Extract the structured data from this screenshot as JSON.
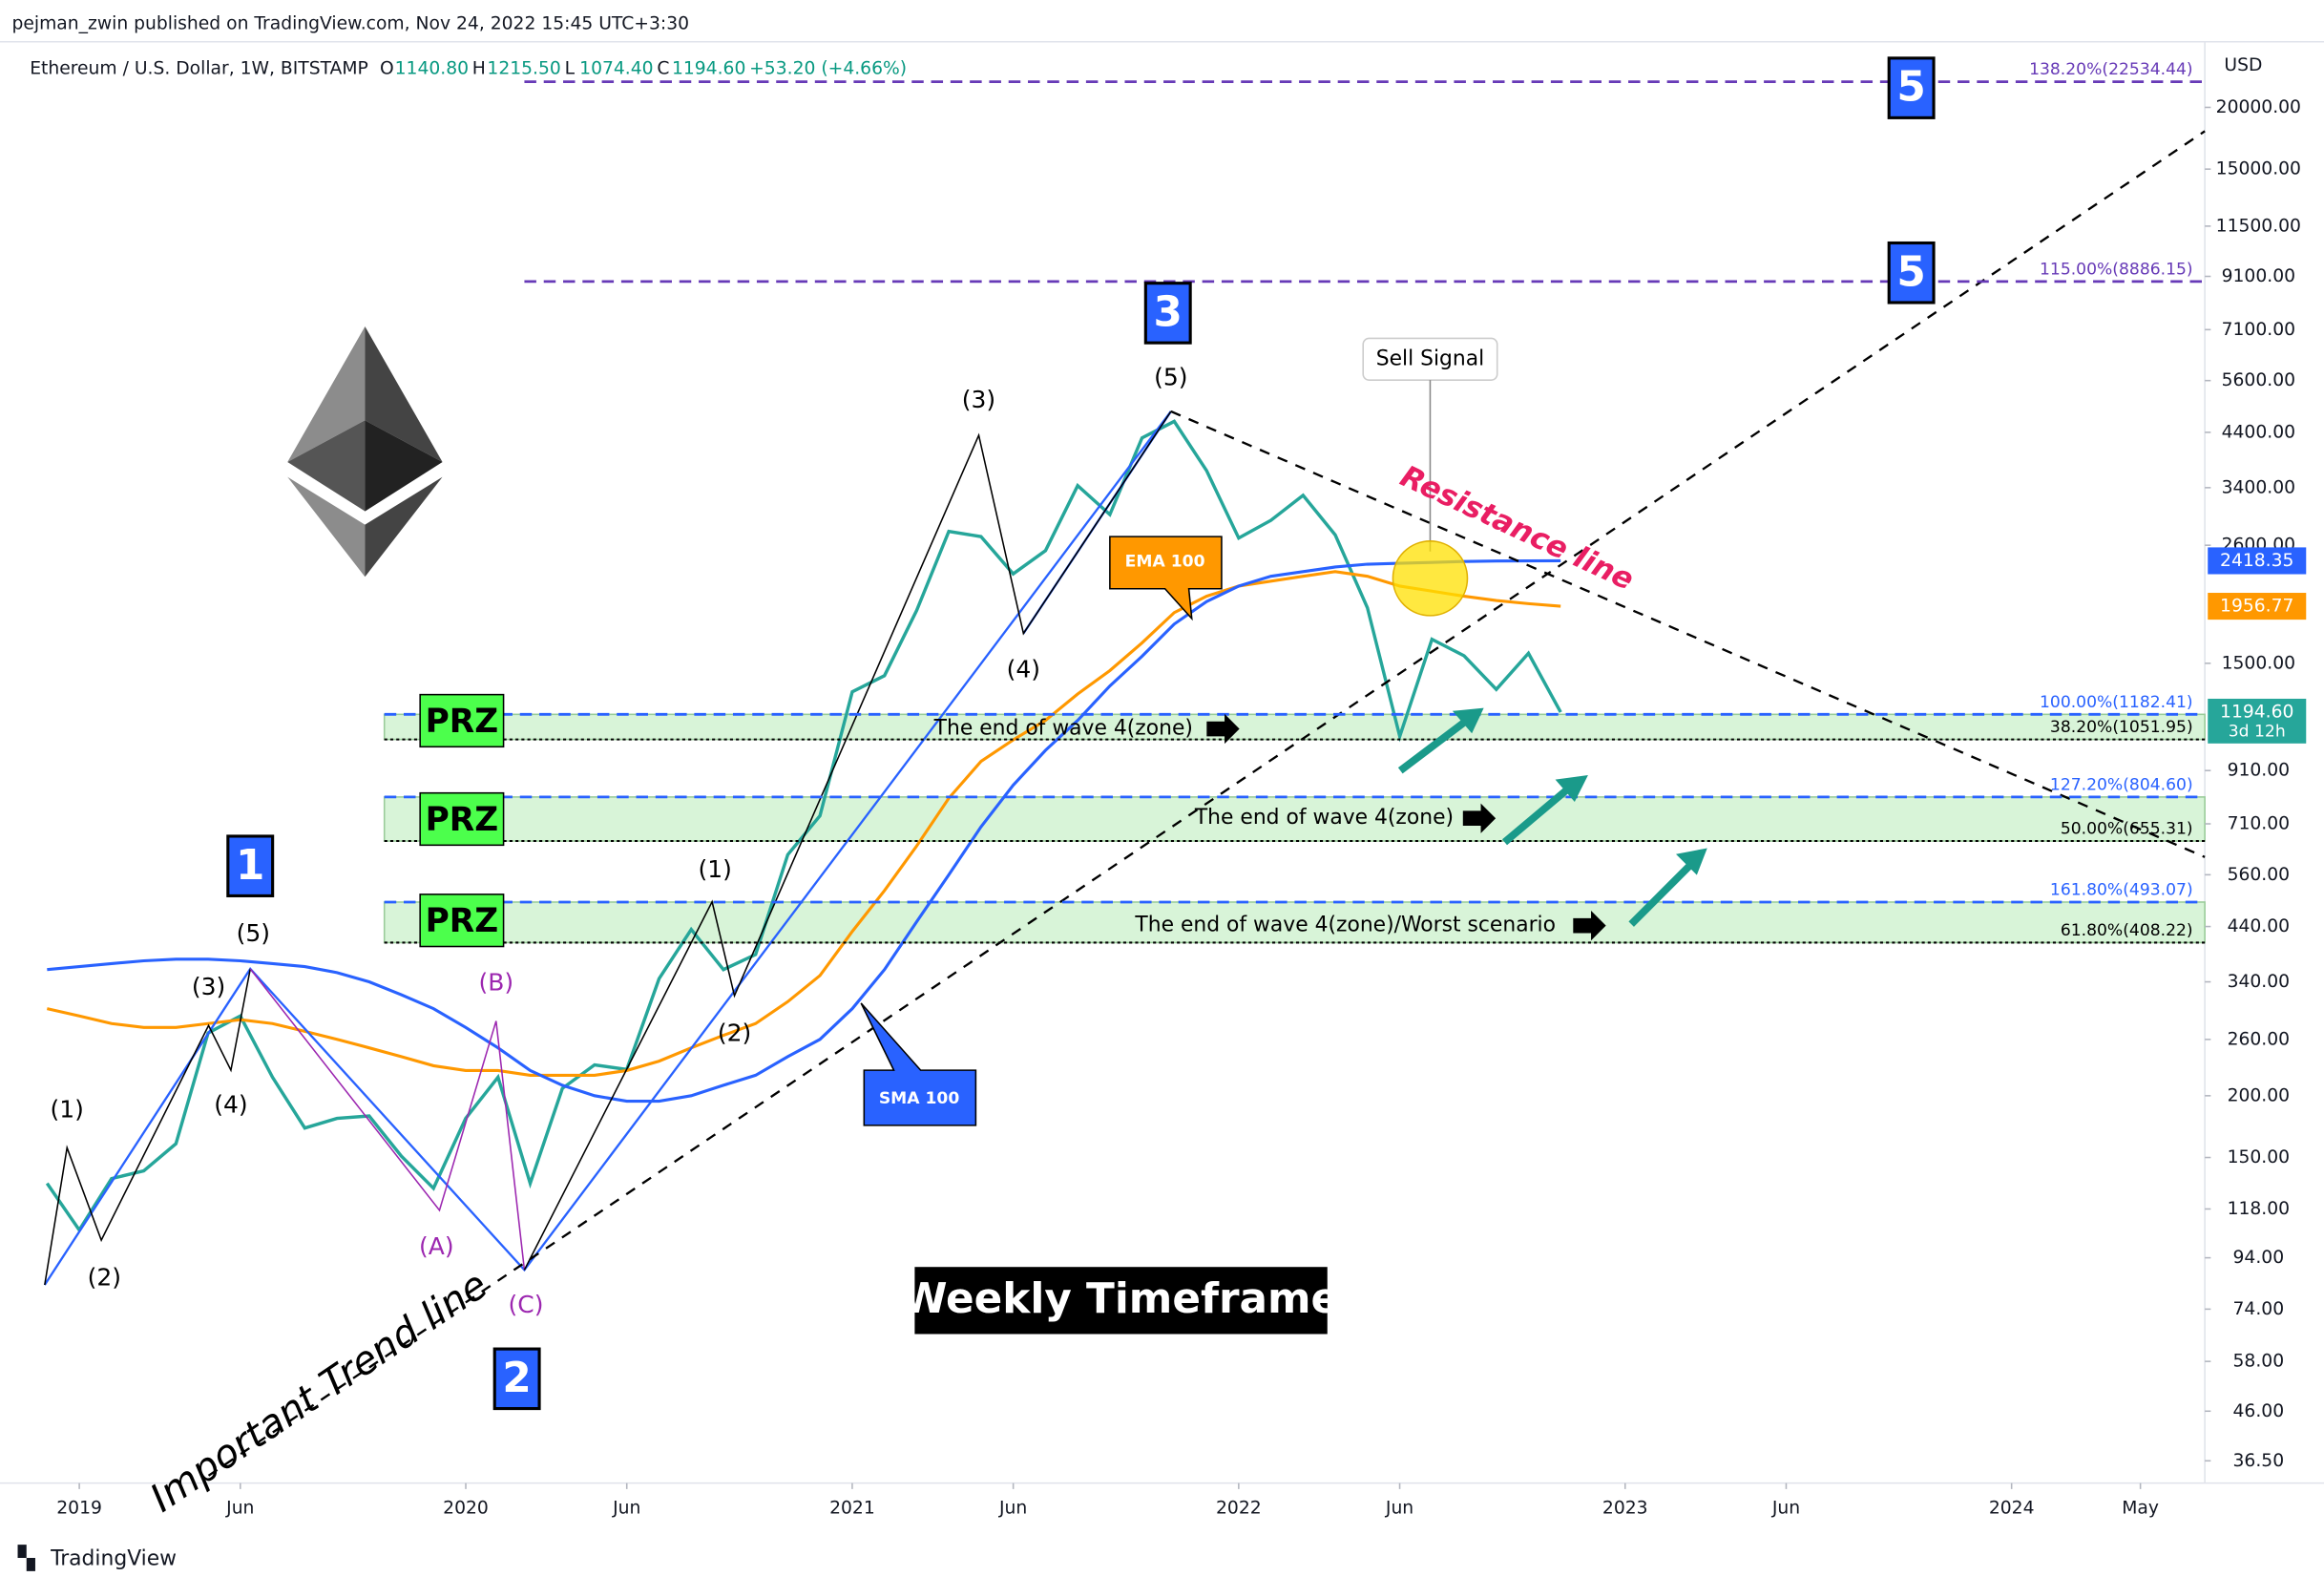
{
  "header": {
    "publisher": "pejman_zwin published on TradingView.com, Nov 24, 2022 15:45 UTC+3:30",
    "footer": "TradingView"
  },
  "annotations": [
    "(1)",
    "(2)",
    "(3)",
    "(4)",
    "(5)",
    "(A)",
    "(B)",
    "(C)",
    "(1)",
    "(2)",
    "(3)",
    "(4)",
    "(5)",
    "1",
    "2",
    "3",
    "5",
    "5",
    "PRZ",
    "PRZ",
    "PRZ",
    "The end of wave 4(zone)",
    "The end of wave 4(zone)",
    "The end of wave 4(zone)/Worst scenario",
    "Sell Signal",
    "Resistance line",
    "Important Trend line",
    "Weekly Timeframe"
  ],
  "chart_data": {
    "type": "line",
    "title": "Ethereum / U.S. Dollar, 1W, BITSTAMP",
    "ohlc": [
      [
        "O",
        "1140.80"
      ],
      [
        "H",
        "1215.50"
      ],
      [
        "L",
        "1074.40"
      ],
      [
        "C",
        "1194.60"
      ]
    ],
    "change": "+53.20 (+4.66%)",
    "y_unit": "USD",
    "log_scale": true,
    "grid": false,
    "xlim": [
      "2018-11",
      "2024-07"
    ],
    "xticks": [
      {
        "value": "2019-01",
        "label": "2019"
      },
      {
        "value": "2019-06",
        "label": "Jun"
      },
      {
        "value": "2020-01",
        "label": "2020"
      },
      {
        "value": "2020-06",
        "label": "Jun"
      },
      {
        "value": "2021-01",
        "label": "2021"
      },
      {
        "value": "2021-06",
        "label": "Jun"
      },
      {
        "value": "2022-01",
        "label": "2022"
      },
      {
        "value": "2022-06",
        "label": "Jun"
      },
      {
        "value": "2023-01",
        "label": "2023"
      },
      {
        "value": "2023-06",
        "label": "Jun"
      },
      {
        "value": "2024-01",
        "label": "2024"
      },
      {
        "value": "2024-05",
        "label": "May"
      }
    ],
    "ylim": [
      32.9,
      26780
    ],
    "yticks": [
      {
        "value": 36.5,
        "label": "36.50"
      },
      {
        "value": 46,
        "label": "46.00"
      },
      {
        "value": 58,
        "label": "58.00"
      },
      {
        "value": 74,
        "label": "74.00"
      },
      {
        "value": 94,
        "label": "94.00"
      },
      {
        "value": 118,
        "label": "118.00"
      },
      {
        "value": 150,
        "label": "150.00"
      },
      {
        "value": 200,
        "label": "200.00"
      },
      {
        "value": 260,
        "label": "260.00"
      },
      {
        "value": 340,
        "label": "340.00"
      },
      {
        "value": 440,
        "label": "440.00"
      },
      {
        "value": 560,
        "label": "560.00"
      },
      {
        "value": 710,
        "label": "710.00"
      },
      {
        "value": 910,
        "label": "910.00"
      },
      {
        "value": 1500,
        "label": "1500.00"
      },
      {
        "value": 2600,
        "label": "2600.00"
      },
      {
        "value": 3400,
        "label": "3400.00"
      },
      {
        "value": 4400,
        "label": "4400.00"
      },
      {
        "value": 5600,
        "label": "5600.00"
      },
      {
        "value": 7100,
        "label": "7100.00"
      },
      {
        "value": 9100,
        "label": "9100.00"
      },
      {
        "value": 11500,
        "label": "11500.00"
      },
      {
        "value": 15000,
        "label": "15000.00"
      },
      {
        "value": 20000,
        "label": "20000.00"
      }
    ],
    "x": [
      "2018-12",
      "2019-01",
      "2019-02",
      "2019-03",
      "2019-04",
      "2019-05",
      "2019-06",
      "2019-07",
      "2019-08",
      "2019-09",
      "2019-10",
      "2019-11",
      "2019-12",
      "2020-01",
      "2020-02",
      "2020-03",
      "2020-04",
      "2020-05",
      "2020-06",
      "2020-07",
      "2020-08",
      "2020-09",
      "2020-10",
      "2020-11",
      "2020-12",
      "2021-01",
      "2021-02",
      "2021-03",
      "2021-04",
      "2021-05",
      "2021-06",
      "2021-07",
      "2021-08",
      "2021-09",
      "2021-10",
      "2021-11",
      "2021-12",
      "2022-01",
      "2022-02",
      "2022-03",
      "2022-04",
      "2022-05",
      "2022-06",
      "2022-07",
      "2022-08",
      "2022-09",
      "2022-10",
      "2022-11"
    ],
    "series": [
      {
        "color": "#26a69a",
        "values": [
          133,
          107,
          136,
          141,
          160,
          268,
          290,
          218,
          172,
          180,
          182,
          151,
          130,
          180,
          218,
          133,
          207,
          231,
          226,
          345,
          434,
          360,
          386,
          615,
          737,
          1314,
          1416,
          1918,
          2773,
          2707,
          2275,
          2536,
          3433,
          3000,
          4288,
          4631,
          3683,
          2688,
          2919,
          3282,
          2727,
          1942,
          1067,
          1678,
          1553,
          1328,
          1572,
          1194.6
        ]
      },
      {
        "name": "EMA 100",
        "color": "#ff9800",
        "values": [
          300,
          290,
          280,
          275,
          275,
          280,
          285,
          280,
          270,
          260,
          250,
          240,
          230,
          225,
          225,
          220,
          220,
          220,
          225,
          235,
          250,
          265,
          280,
          310,
          350,
          430,
          520,
          640,
          800,
          950,
          1050,
          1150,
          1300,
          1450,
          1650,
          1900,
          2050,
          2150,
          2200,
          2250,
          2300,
          2250,
          2150,
          2100,
          2050,
          2010,
          1980,
          1956.77
        ]
      },
      {
        "name": "SMA 100",
        "color": "#2962ff",
        "values": [
          360,
          365,
          370,
          375,
          378,
          378,
          375,
          370,
          365,
          355,
          340,
          320,
          300,
          275,
          250,
          225,
          210,
          200,
          195,
          195,
          200,
          210,
          220,
          240,
          260,
          300,
          360,
          450,
          560,
          700,
          850,
          1000,
          1150,
          1350,
          1550,
          1800,
          2000,
          2150,
          2250,
          2300,
          2350,
          2380,
          2390,
          2400,
          2410,
          2415,
          2418,
          2418.35
        ]
      }
    ],
    "price_tags": [
      {
        "value": 1194.6,
        "label": "1194.60",
        "sub": "3d 12h",
        "color": "#26a69a"
      },
      {
        "value": 2418.35,
        "label": "2418.35",
        "color": "#2962ff"
      },
      {
        "value": 1956.77,
        "label": "1956.77",
        "color": "#ff9800"
      }
    ],
    "fib_levels": [
      {
        "value": 22534.44,
        "label": "138.20%(22534.44)",
        "color": "#673ab7",
        "style": "dashed"
      },
      {
        "value": 8886.15,
        "label": "115.00%(8886.15)",
        "color": "#673ab7",
        "style": "dashed"
      },
      {
        "value": 1182.41,
        "label": "100.00%(1182.41)",
        "color": "#2962ff",
        "style": "dashed"
      },
      {
        "value": 1051.95,
        "label": "38.20%(1051.95)",
        "color": "#000000",
        "style": "dotted"
      },
      {
        "value": 804.6,
        "label": "127.20%(804.60)",
        "color": "#2962ff",
        "style": "dashed"
      },
      {
        "value": 655.31,
        "label": "50.00%(655.31)",
        "color": "#000000",
        "style": "dotted"
      },
      {
        "value": 493.07,
        "label": "161.80%(493.07)",
        "color": "#2962ff",
        "style": "dashed"
      },
      {
        "value": 408.22,
        "label": "61.80%(408.22)",
        "color": "#000000",
        "style": "dotted"
      }
    ],
    "zones": [
      [
        2,
        3
      ],
      [
        4,
        5
      ],
      [
        6,
        7
      ]
    ],
    "zone_color": "#c8f0c8"
  }
}
